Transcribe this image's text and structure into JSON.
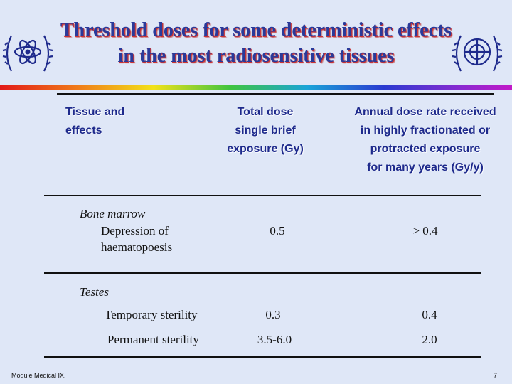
{
  "title": {
    "line1": "Threshold doses for some deterministic effects",
    "line2": "in the most radiosensitive tissues"
  },
  "logos": {
    "left": "IAEA atom emblem",
    "right": "United Nations emblem"
  },
  "table": {
    "headers": {
      "tissue": [
        "Tissue and",
        "effects"
      ],
      "total_dose": [
        "Total dose",
        "single brief",
        "exposure (Gy)"
      ],
      "annual_rate": [
        "Annual dose rate received",
        "in highly fractionated or",
        "protracted exposure",
        "for many years (Gy/y)"
      ]
    },
    "groups": [
      {
        "name": "Bone marrow",
        "rows": [
          {
            "effect_lines": [
              "Depression of",
              "haematopoesis"
            ],
            "total": "0.5",
            "annual": "> 0.4"
          }
        ]
      },
      {
        "name": "Testes",
        "rows": [
          {
            "effect": "Temporary sterility",
            "total": "0.3",
            "annual": "0.4"
          },
          {
            "effect": "Permanent sterility",
            "total": "3.5-6.0",
            "annual": "2.0"
          }
        ]
      }
    ]
  },
  "footer": {
    "module": "Module Medical IX.",
    "page": "7"
  },
  "colors": {
    "background": "#dfe7f7",
    "title": "#2a3a9a",
    "header_text": "#1e2a8c"
  }
}
